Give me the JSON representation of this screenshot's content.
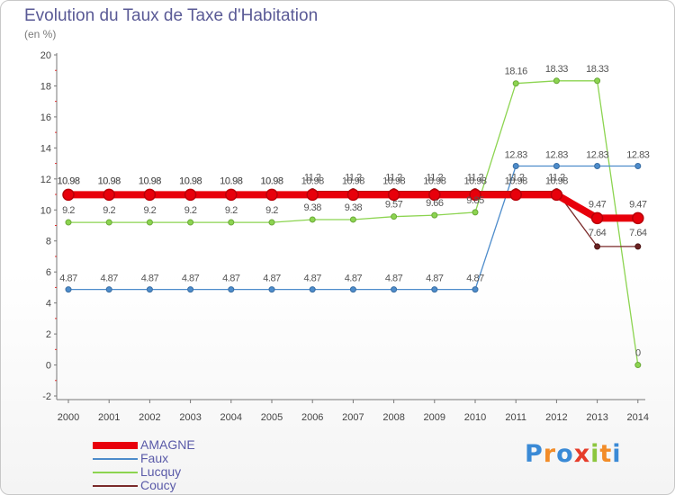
{
  "header": {
    "title": "Evolution du Taux de Taxe d'Habitation",
    "subtitle": "(en %)"
  },
  "logo": {
    "text": "Proxiti",
    "colors": [
      "#3a8ad6",
      "#f28c28",
      "#3a8ad6",
      "#e63c2a",
      "#8cc63e",
      "#f28c28",
      "#3a8ad6"
    ]
  },
  "chart_data": {
    "type": "line",
    "title": "Evolution du Taux de Taxe d'Habitation",
    "subtitle": "(en %)",
    "categories": [
      "2000",
      "2001",
      "2002",
      "2003",
      "2004",
      "2005",
      "2006",
      "2007",
      "2008",
      "2009",
      "2010",
      "2011",
      "2012",
      "2013",
      "2014"
    ],
    "y_ticks": [
      "-2",
      "0",
      "2",
      "4",
      "6",
      "8",
      "10",
      "12",
      "14",
      "16",
      "18",
      "20"
    ],
    "ylim": [
      -2,
      20
    ],
    "grid": false,
    "legend_position": "bottom-left",
    "series": [
      {
        "name": "AMAGNE",
        "color": "#e8000b",
        "values": [
          10.98,
          10.98,
          10.98,
          10.98,
          10.98,
          10.98,
          10.98,
          10.98,
          10.98,
          10.98,
          10.98,
          10.98,
          10.98,
          9.47,
          9.47
        ],
        "labels": [
          "10.98",
          "10.98",
          "10.98",
          "10.98",
          "10.98",
          "10.98",
          "10.98",
          "10.98",
          "10.98",
          "10.98",
          "10.98",
          "10.98",
          "10.98",
          "9.47",
          "9.47"
        ]
      },
      {
        "name": "Faux",
        "color": "#4d8ccb",
        "values": [
          4.87,
          4.87,
          4.87,
          4.87,
          4.87,
          4.87,
          4.87,
          4.87,
          4.87,
          4.87,
          4.87,
          12.83,
          12.83,
          12.83,
          12.83
        ],
        "labels": [
          "4.87",
          "4.87",
          "4.87",
          "4.87",
          "4.87",
          "4.87",
          "4.87",
          "4.87",
          "4.87",
          "4.87",
          "4.87",
          "12.83",
          "12.83",
          "12.83",
          "12.83"
        ]
      },
      {
        "name": "Lucquy",
        "color": "#8cd450",
        "values": [
          9.2,
          9.2,
          9.2,
          9.2,
          9.2,
          9.2,
          9.38,
          9.38,
          9.57,
          9.66,
          9.85,
          18.16,
          18.33,
          18.33,
          0
        ],
        "labels": [
          "9.2",
          "9.2",
          "9.2",
          "9.2",
          "9.2",
          "9.2",
          "9.38",
          "9.38",
          "9.57",
          "9.66",
          "9.85",
          "18.16",
          "18.33",
          "18.33",
          "0"
        ]
      },
      {
        "name": "Coucy",
        "color": "#7a2a2a",
        "values": [
          10.98,
          10.98,
          10.98,
          10.98,
          10.98,
          10.98,
          11.2,
          11.2,
          11.2,
          11.2,
          11.2,
          11.2,
          11.2,
          7.64,
          7.64
        ],
        "labels": [
          "10.98",
          "10.98",
          "10.98",
          "10.98",
          "10.98",
          "10.98",
          "11.2",
          "11.2",
          "11.2",
          "11.2",
          "11.2",
          "11.2",
          "11.2",
          "7.64",
          "7.64"
        ]
      }
    ]
  }
}
